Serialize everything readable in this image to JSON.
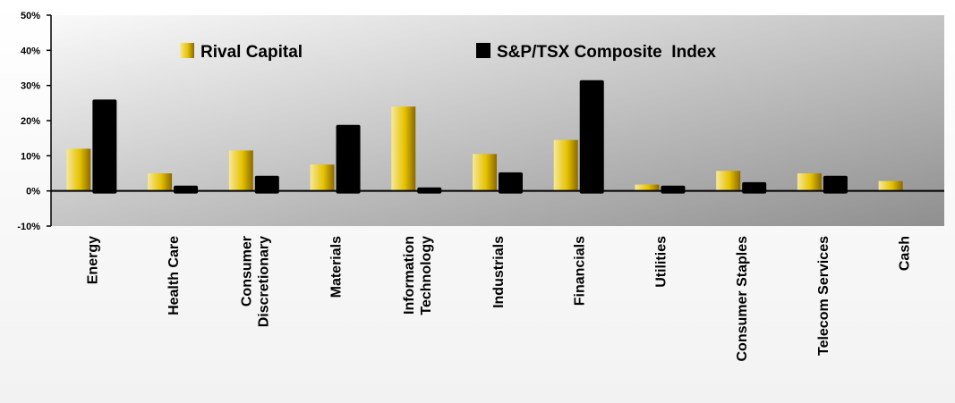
{
  "chart_data": {
    "type": "bar",
    "categories": [
      [
        "Energy"
      ],
      [
        "Health Care"
      ],
      [
        "Consumer",
        "Discretionary"
      ],
      [
        "Materials"
      ],
      [
        "Information",
        "Technology"
      ],
      [
        "Industrials"
      ],
      [
        "Financials"
      ],
      [
        "Utilities"
      ],
      [
        "Consumer Staples"
      ],
      [
        "Telecom Services"
      ],
      [
        "Cash"
      ]
    ],
    "series": [
      {
        "name": "Rival Capital",
        "values": [
          12,
          5,
          11.5,
          7.5,
          24,
          10.5,
          14.5,
          1.8,
          5.7,
          5,
          2.8
        ]
      },
      {
        "name": "S&P/TSX Composite  Index",
        "values": [
          26,
          1.5,
          4.3,
          18.8,
          1,
          5.3,
          31.5,
          1.5,
          2.5,
          4.3,
          null
        ]
      }
    ],
    "yticks": [
      "50%",
      "40%",
      "30%",
      "20%",
      "10%",
      "0%",
      "-10%"
    ],
    "ylim": [
      -10,
      50
    ],
    "legend_position": "top",
    "colors": {
      "series_0_light": "#f7e89a",
      "series_0_mid": "#e5c200",
      "series_0_dark": "#8a6800",
      "series_1": "#000000",
      "plot_bg_light": "#fafafa",
      "plot_bg_dark": "#8f8f8f"
    }
  }
}
